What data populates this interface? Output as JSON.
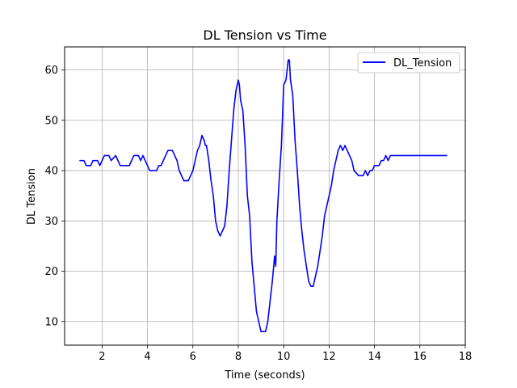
{
  "chart_data": {
    "type": "line",
    "title": "DL Tension vs Time",
    "xlabel": "Time (seconds)",
    "ylabel": "DL Tension",
    "xlim": [
      0.35,
      18.0
    ],
    "ylim": [
      5.3,
      64.6
    ],
    "xticks": [
      2,
      4,
      6,
      8,
      10,
      12,
      14,
      16,
      18
    ],
    "yticks": [
      10,
      20,
      30,
      40,
      50,
      60
    ],
    "grid": true,
    "legend": {
      "position": "top-right"
    },
    "series": [
      {
        "name": "DL_Tension",
        "color": "#0000ff",
        "points": [
          [
            1.0,
            42
          ],
          [
            1.2,
            42
          ],
          [
            1.3,
            41
          ],
          [
            1.5,
            41
          ],
          [
            1.6,
            42
          ],
          [
            1.8,
            42
          ],
          [
            1.9,
            41
          ],
          [
            2.0,
            42
          ],
          [
            2.1,
            43
          ],
          [
            2.3,
            43
          ],
          [
            2.4,
            42
          ],
          [
            2.6,
            43
          ],
          [
            2.7,
            42
          ],
          [
            2.8,
            41
          ],
          [
            3.0,
            41
          ],
          [
            3.2,
            41
          ],
          [
            3.3,
            42
          ],
          [
            3.4,
            43
          ],
          [
            3.6,
            43
          ],
          [
            3.7,
            42
          ],
          [
            3.8,
            43
          ],
          [
            3.9,
            42
          ],
          [
            4.0,
            41
          ],
          [
            4.1,
            40
          ],
          [
            4.3,
            40
          ],
          [
            4.4,
            40
          ],
          [
            4.5,
            41
          ],
          [
            4.6,
            41
          ],
          [
            4.7,
            42
          ],
          [
            4.8,
            43
          ],
          [
            4.9,
            44
          ],
          [
            5.1,
            44
          ],
          [
            5.2,
            43
          ],
          [
            5.3,
            42
          ],
          [
            5.4,
            40
          ],
          [
            5.5,
            39
          ],
          [
            5.6,
            38
          ],
          [
            5.8,
            38
          ],
          [
            5.9,
            39
          ],
          [
            6.0,
            40
          ],
          [
            6.1,
            42
          ],
          [
            6.2,
            44
          ],
          [
            6.3,
            45
          ],
          [
            6.4,
            47
          ],
          [
            6.5,
            46
          ],
          [
            6.55,
            45
          ],
          [
            6.6,
            45
          ],
          [
            6.7,
            42
          ],
          [
            6.8,
            38
          ],
          [
            6.9,
            35
          ],
          [
            7.0,
            30
          ],
          [
            7.1,
            28
          ],
          [
            7.2,
            27
          ],
          [
            7.3,
            28
          ],
          [
            7.4,
            29
          ],
          [
            7.5,
            33
          ],
          [
            7.6,
            40
          ],
          [
            7.7,
            46
          ],
          [
            7.8,
            52
          ],
          [
            7.9,
            56
          ],
          [
            8.0,
            58
          ],
          [
            8.05,
            57
          ],
          [
            8.1,
            54
          ],
          [
            8.2,
            52
          ],
          [
            8.3,
            45
          ],
          [
            8.4,
            35
          ],
          [
            8.5,
            31
          ],
          [
            8.6,
            22
          ],
          [
            8.7,
            17
          ],
          [
            8.8,
            12
          ],
          [
            8.9,
            10
          ],
          [
            9.0,
            8
          ],
          [
            9.2,
            8
          ],
          [
            9.3,
            10
          ],
          [
            9.4,
            14
          ],
          [
            9.5,
            18
          ],
          [
            9.6,
            23
          ],
          [
            9.65,
            21
          ],
          [
            9.7,
            30
          ],
          [
            9.8,
            38
          ],
          [
            9.9,
            45
          ],
          [
            10.0,
            57
          ],
          [
            10.1,
            58
          ],
          [
            10.2,
            62
          ],
          [
            10.25,
            62
          ],
          [
            10.3,
            58
          ],
          [
            10.4,
            55
          ],
          [
            10.5,
            46
          ],
          [
            10.6,
            40
          ],
          [
            10.7,
            33
          ],
          [
            10.8,
            28
          ],
          [
            10.9,
            24
          ],
          [
            11.0,
            21
          ],
          [
            11.1,
            18
          ],
          [
            11.2,
            17
          ],
          [
            11.3,
            17
          ],
          [
            11.4,
            19
          ],
          [
            11.5,
            21
          ],
          [
            11.6,
            24
          ],
          [
            11.7,
            27
          ],
          [
            11.8,
            31
          ],
          [
            11.9,
            33
          ],
          [
            12.0,
            35
          ],
          [
            12.1,
            37
          ],
          [
            12.2,
            40
          ],
          [
            12.3,
            42
          ],
          [
            12.4,
            44
          ],
          [
            12.5,
            45
          ],
          [
            12.6,
            44
          ],
          [
            12.7,
            45
          ],
          [
            12.8,
            44
          ],
          [
            12.9,
            43
          ],
          [
            13.0,
            42
          ],
          [
            13.1,
            40
          ],
          [
            13.3,
            39
          ],
          [
            13.5,
            39
          ],
          [
            13.6,
            40
          ],
          [
            13.7,
            39
          ],
          [
            13.8,
            40
          ],
          [
            13.9,
            40
          ],
          [
            14.0,
            41
          ],
          [
            14.2,
            41
          ],
          [
            14.3,
            42
          ],
          [
            14.4,
            42
          ],
          [
            14.5,
            43
          ],
          [
            14.6,
            42
          ],
          [
            14.7,
            43
          ],
          [
            14.8,
            43
          ],
          [
            15.0,
            43
          ],
          [
            15.5,
            43
          ],
          [
            16.0,
            43
          ],
          [
            16.5,
            43
          ],
          [
            17.2,
            43
          ]
        ]
      }
    ]
  }
}
